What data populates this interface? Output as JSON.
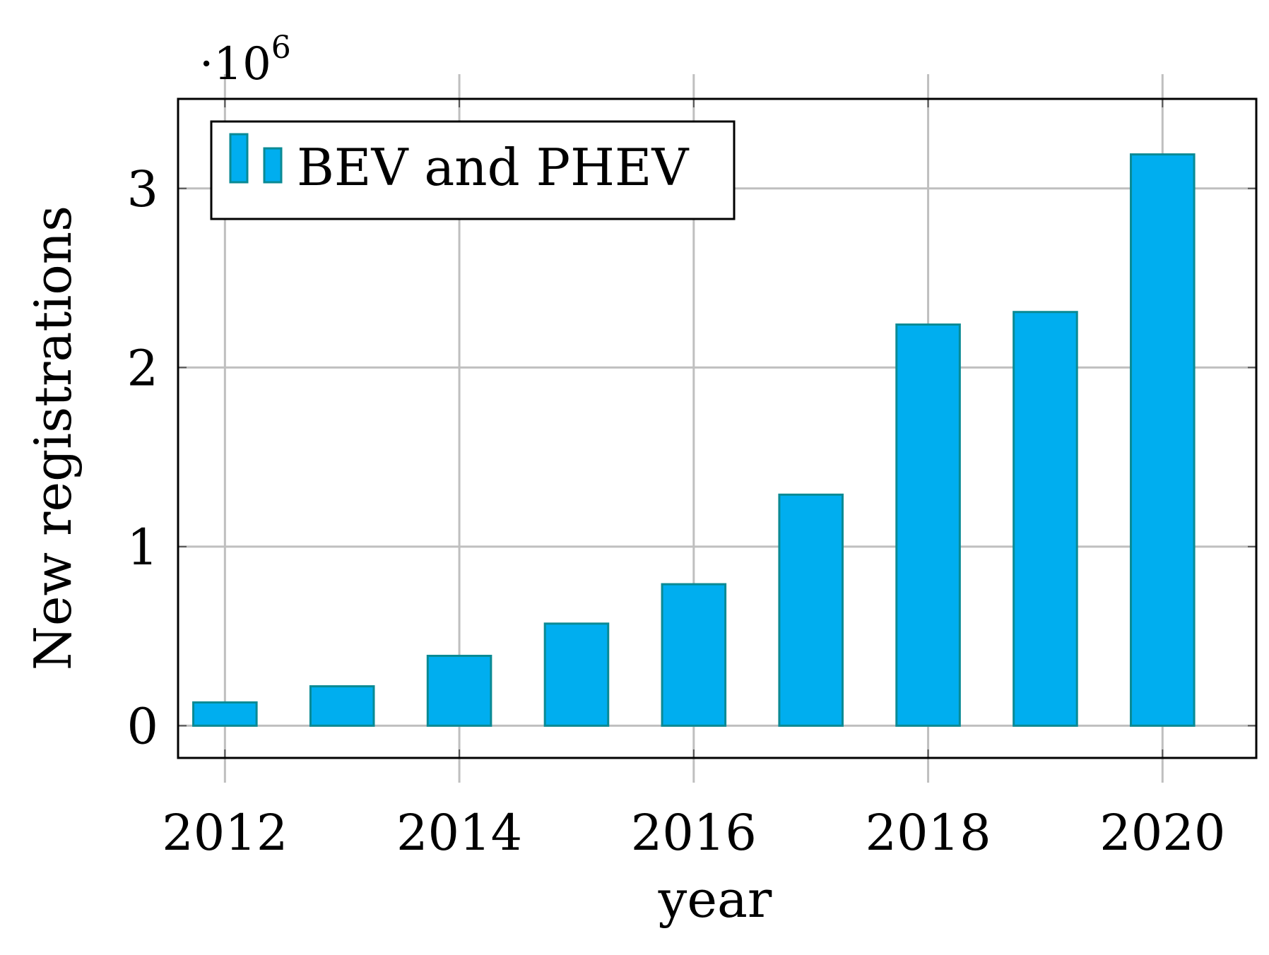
{
  "chart_data": {
    "type": "bar",
    "title": "",
    "xlabel": "year",
    "ylabel": "New registrations",
    "y_multiplier": {
      "base": "·10",
      "exponent": "6"
    },
    "x": [
      2012,
      2013,
      2014,
      2015,
      2016,
      2017,
      2018,
      2019,
      2020
    ],
    "series": [
      {
        "name": "BEV and PHEV",
        "values": [
          0.13,
          0.22,
          0.39,
          0.57,
          0.79,
          1.29,
          2.24,
          2.31,
          3.19
        ],
        "fill": "#00aeef",
        "stroke": "#0a8a94"
      }
    ],
    "x_ticks": [
      "2012",
      "2014",
      "2016",
      "2018",
      "2020"
    ],
    "y_ticks": [
      "0",
      "1",
      "2",
      "3"
    ],
    "xlim": [
      2011.6,
      2020.8
    ],
    "ylim": [
      -0.18,
      3.5
    ],
    "grid": true,
    "legend_position": "top-left",
    "colors": {
      "grid": "#bfbfbf",
      "axis": "#000000"
    }
  }
}
